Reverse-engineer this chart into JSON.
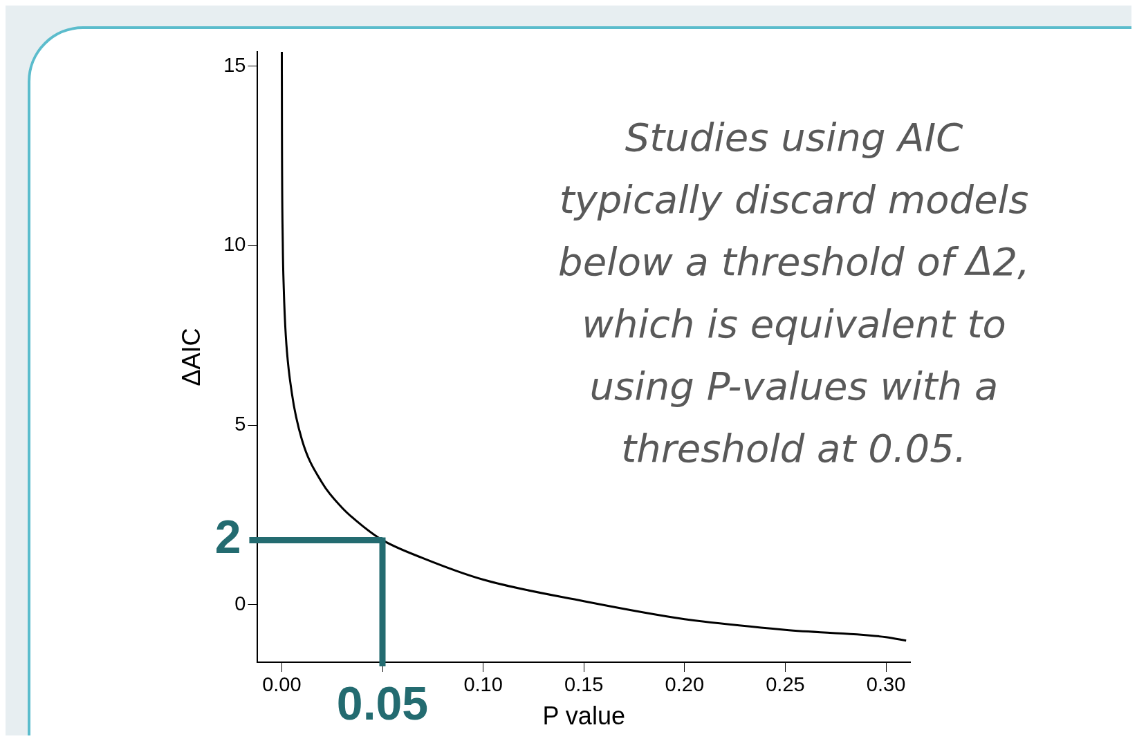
{
  "chart_data": {
    "type": "line",
    "xlabel": "P value",
    "ylabel": "ΔAIC",
    "x": [
      3e-05,
      0.0001,
      0.0005,
      0.001,
      0.002,
      0.005,
      0.01,
      0.02,
      0.03,
      0.04,
      0.05,
      0.07,
      0.1,
      0.15,
      0.2,
      0.25,
      0.3,
      0.31
    ],
    "series": [
      {
        "color": "#000000",
        "values": [
          15.4,
          13.1,
          10.1,
          8.8,
          7.5,
          5.9,
          4.6,
          3.4,
          2.7,
          2.2,
          1.8,
          1.3,
          0.7,
          0.1,
          -0.4,
          -0.7,
          -0.9,
          -1.0
        ]
      }
    ],
    "xlim": [
      -0.012,
      0.312
    ],
    "xticks": [
      {
        "value": 0,
        "label": "0.00"
      },
      {
        "value": 0.05,
        "label": null
      },
      {
        "value": 0.1,
        "label": "0.10"
      },
      {
        "value": 0.15,
        "label": "0.15"
      },
      {
        "value": 0.2,
        "label": "0.20"
      },
      {
        "value": 0.25,
        "label": "0.25"
      },
      {
        "value": 0.3,
        "label": "0.30"
      }
    ],
    "ylim": [
      -1.6,
      15.4
    ],
    "yticks": [
      0,
      5,
      10,
      15
    ],
    "ref_lines": [
      {
        "axis": "y",
        "value": 1.8,
        "label": "2",
        "color": "#236b70"
      },
      {
        "axis": "x",
        "value": 0.05,
        "label": "0.05",
        "color": "#236b70"
      }
    ],
    "annotations": [
      "Studies using AIC typically discard models below a threshold of Δ2, which is equivalent to using P-values with a threshold at 0.05."
    ],
    "grid": false,
    "legend": false,
    "marker": "none",
    "line_style": "solid"
  }
}
